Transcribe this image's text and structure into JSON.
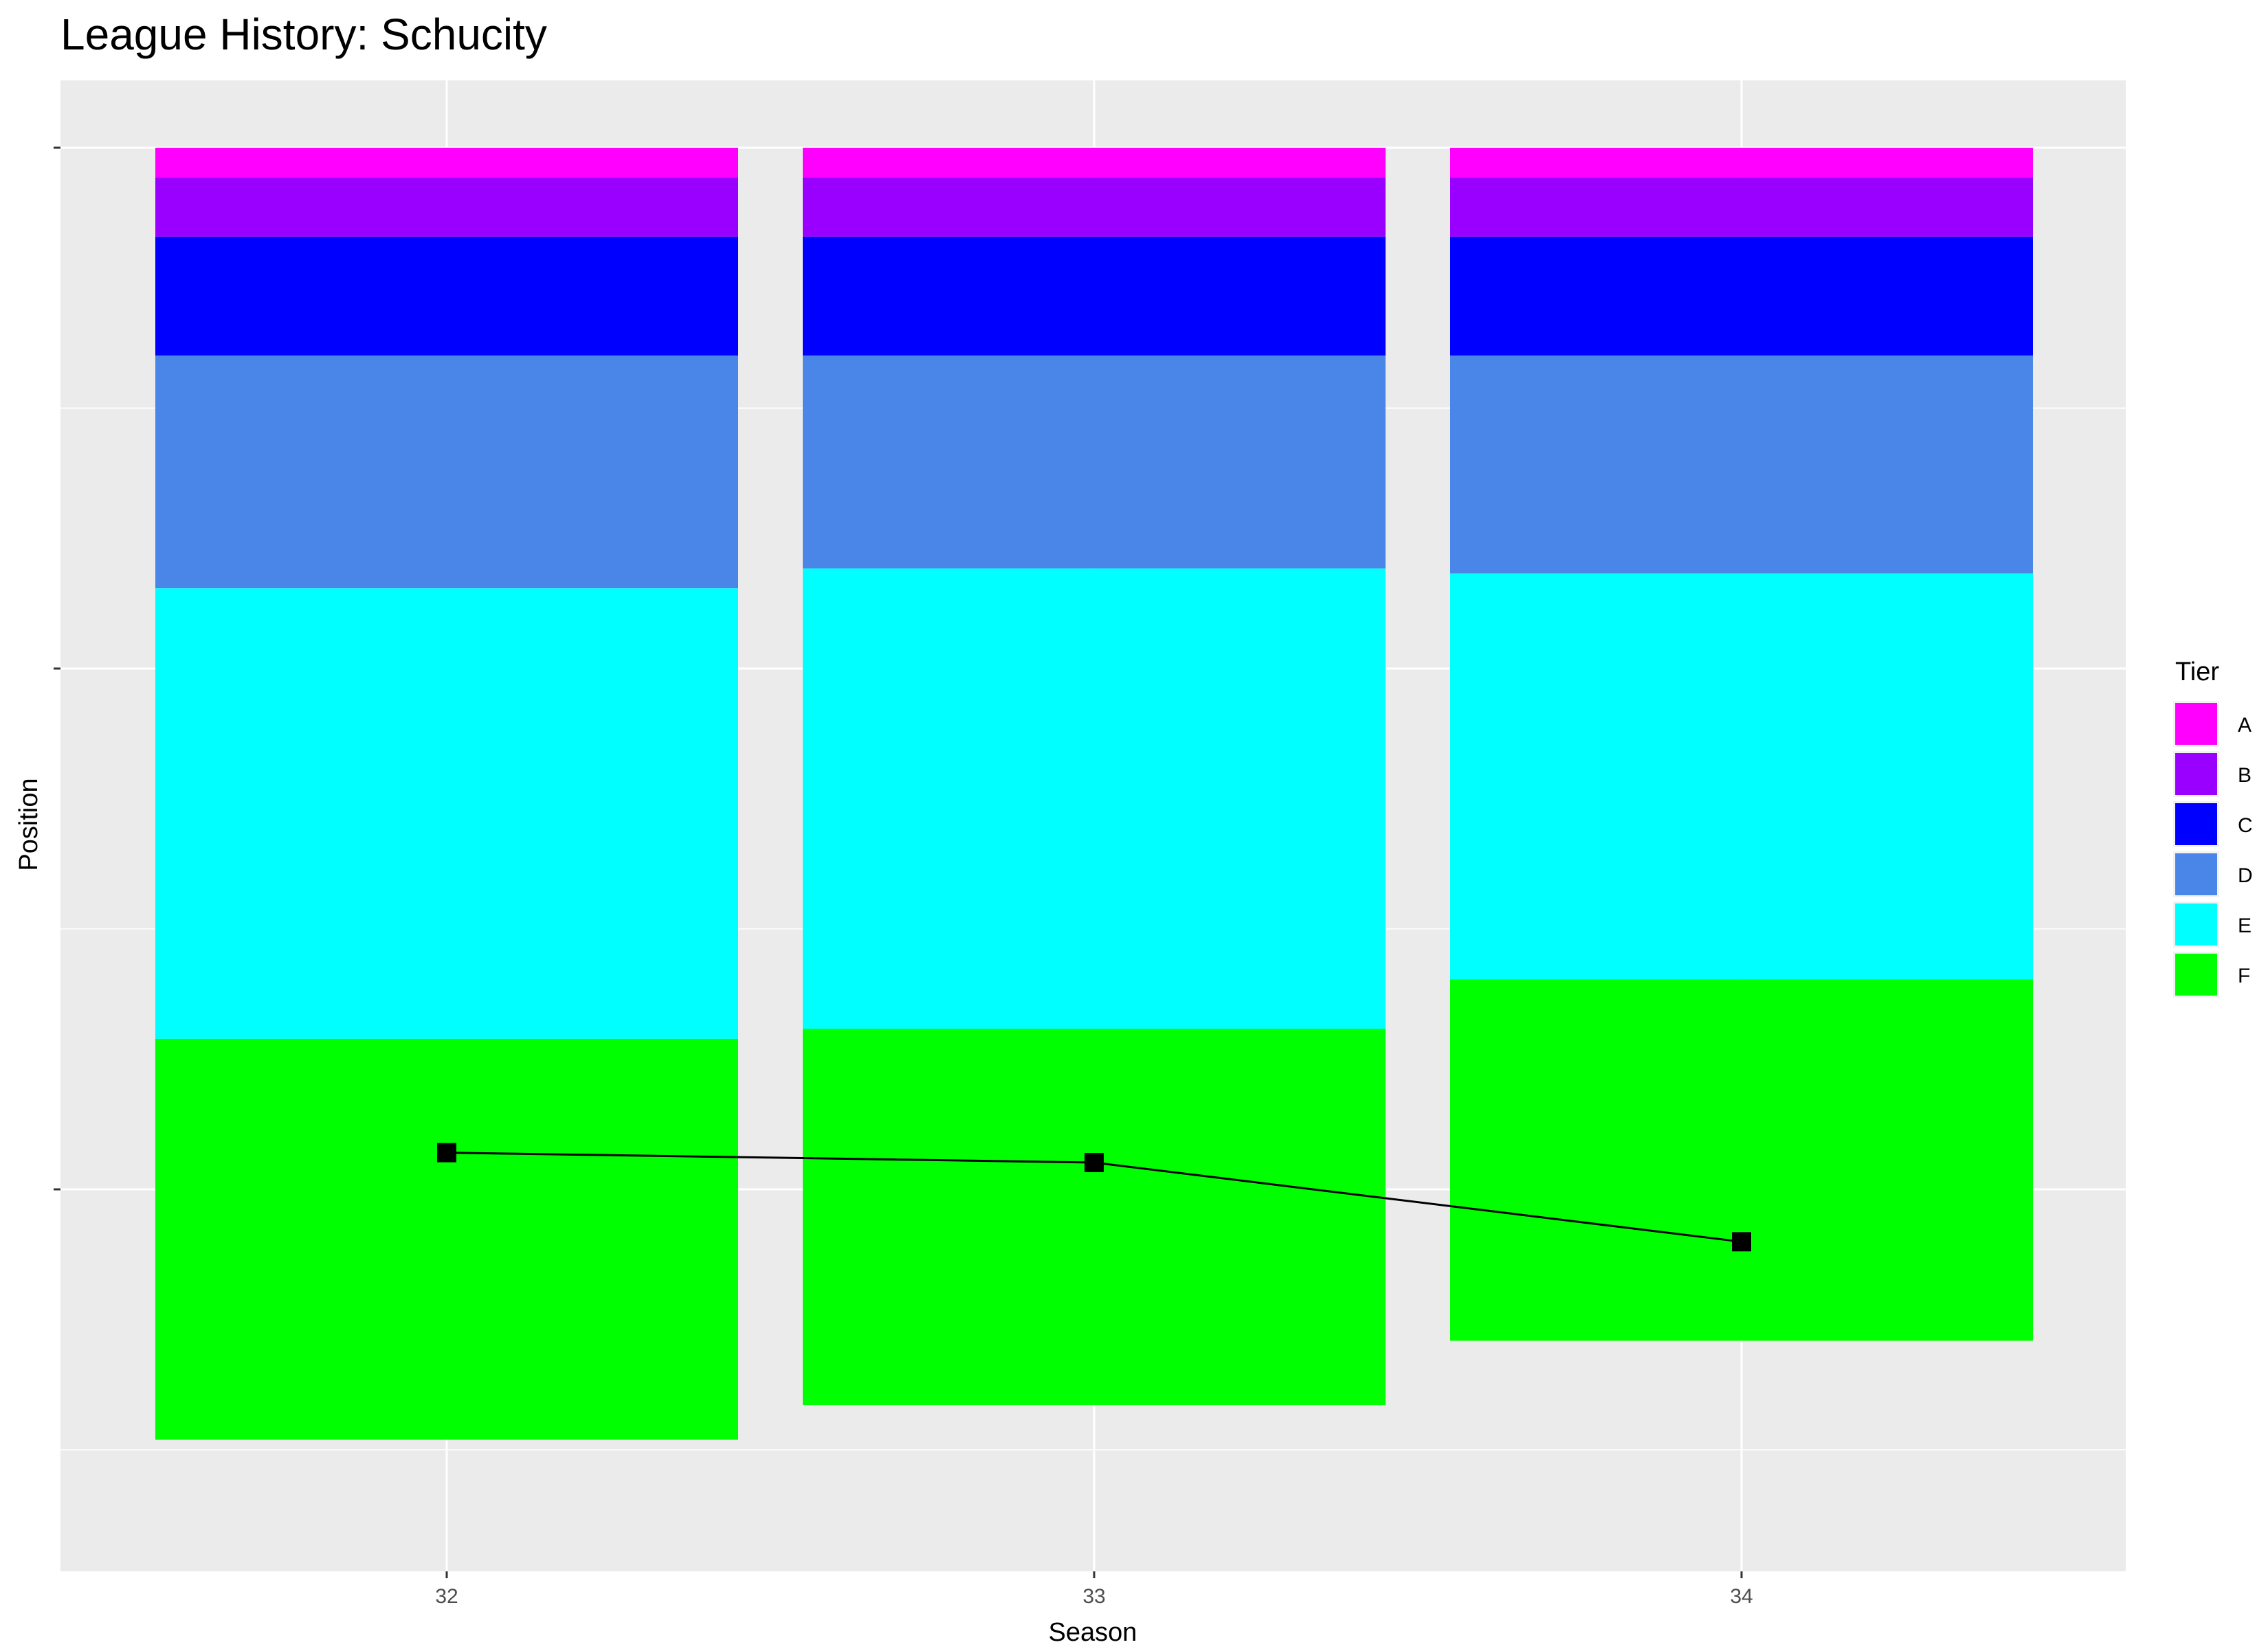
{
  "chart_data": {
    "type": "bar",
    "stacked": true,
    "title": "League History: Schucity",
    "xlabel": "Season",
    "ylabel": "Position",
    "categories": [
      "32",
      "33",
      "34"
    ],
    "y_reversed": true,
    "ylim": [
      1,
      142
    ],
    "y_tick_labels_visible": false,
    "grid": true,
    "legend": {
      "title": "Tier",
      "placement": "right"
    },
    "series": [
      {
        "name": "A",
        "color": "#FF00FF",
        "values": [
          3,
          3,
          3
        ]
      },
      {
        "name": "B",
        "color": "#9A00FF",
        "values": [
          6,
          6,
          6
        ]
      },
      {
        "name": "C",
        "color": "#0000FF",
        "values": [
          12,
          12,
          12
        ]
      },
      {
        "name": "D",
        "color": "#4A86E8",
        "values": [
          23.5,
          21.5,
          22
        ]
      },
      {
        "name": "E",
        "color": "#00FFFF",
        "values": [
          45.5,
          46.5,
          41
        ]
      },
      {
        "name": "F",
        "color": "#00FF00",
        "values": [
          40.5,
          38,
          36.5
        ]
      }
    ],
    "line": {
      "color": "#000000",
      "marker": "square",
      "values": [
        102.5,
        103.5,
        111.5
      ]
    }
  }
}
